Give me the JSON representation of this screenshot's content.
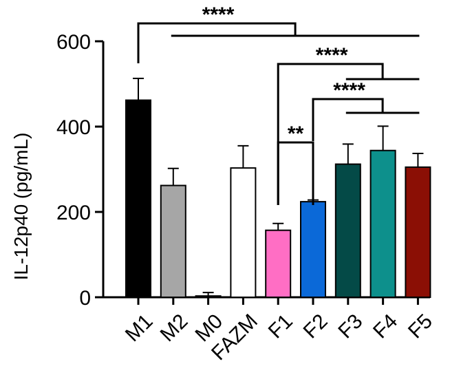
{
  "chart_data": {
    "type": "bar",
    "categories": [
      "M1",
      "M2",
      "M0",
      "FAZM",
      "F1",
      "F2",
      "F3",
      "F4",
      "F5"
    ],
    "values": [
      462,
      262,
      3,
      303,
      157,
      224,
      312,
      344,
      305
    ],
    "errors": [
      51,
      40,
      8,
      52,
      16,
      4,
      47,
      57,
      32
    ],
    "colors": [
      "#000000",
      "#a6a6a6",
      "#ffffff",
      "#ffffff",
      "#ff6ec4",
      "#0b69d8",
      "#044a47",
      "#0d908c",
      "#8b0f05"
    ],
    "title": "",
    "xlabel": "",
    "ylabel": "IL-12p40 (pg/mL)",
    "ylim": [
      0,
      600
    ],
    "yticks": [
      "0",
      "200",
      "400",
      "600"
    ],
    "grid": false,
    "significance": [
      {
        "label": "****",
        "left": "M1",
        "right": [
          "M2",
          "M0",
          "FAZM",
          "F1",
          "F2",
          "F3",
          "F4",
          "F5"
        ]
      },
      {
        "label": "****",
        "left": "F1",
        "right": [
          "F3",
          "F4",
          "F5"
        ]
      },
      {
        "label": "****",
        "left": "F2",
        "right": [
          "F3",
          "F4",
          "F5"
        ]
      },
      {
        "label": "**",
        "left": "F1",
        "right": [
          "F2"
        ]
      }
    ]
  }
}
